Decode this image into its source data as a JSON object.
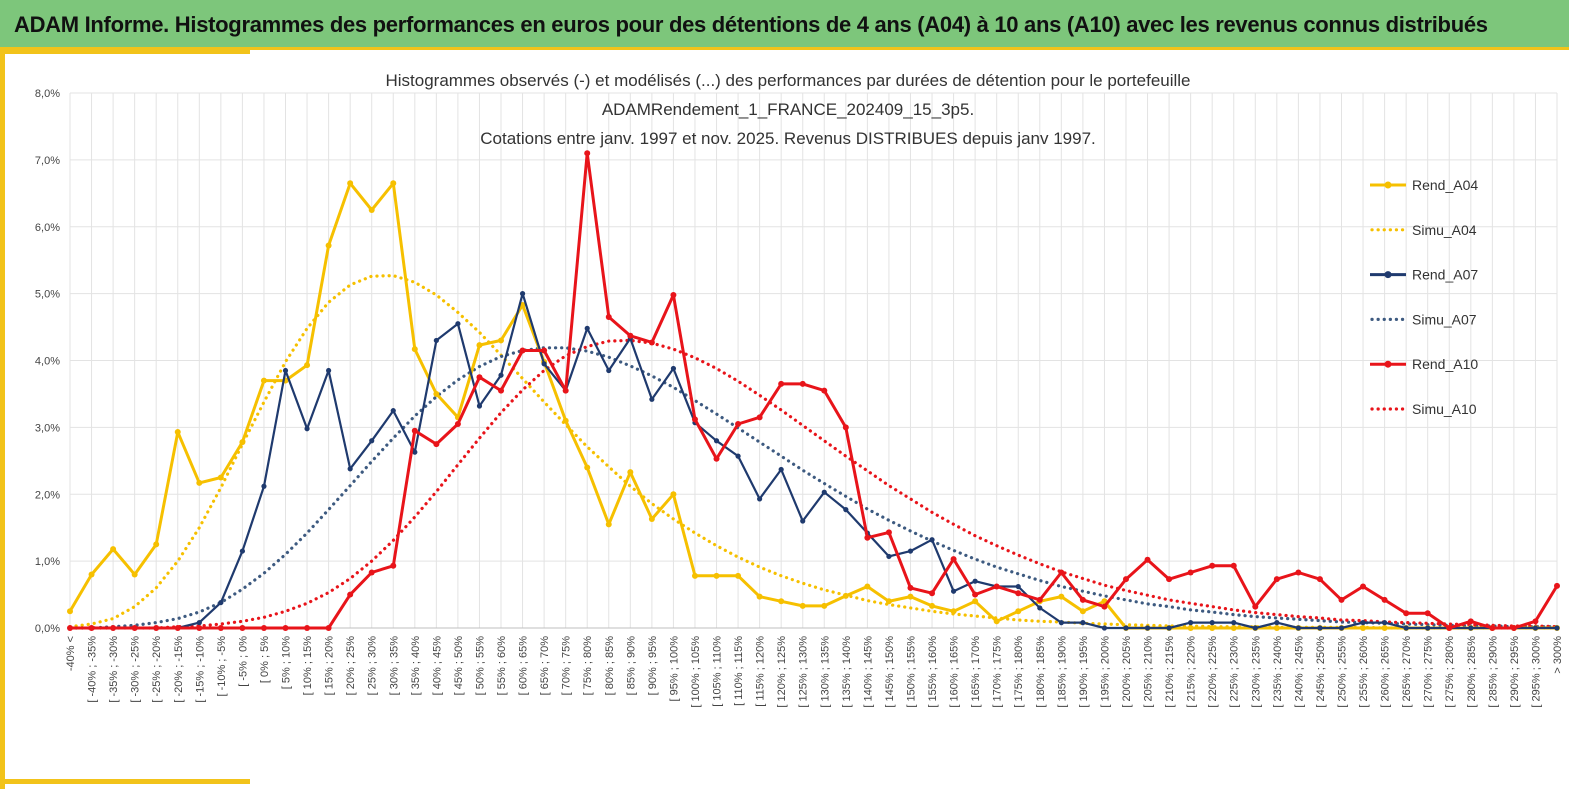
{
  "header": {
    "title": "ADAM Informe. Histogrammes des performances en euros pour des détentions de 4 ans (A04) à 10 ans (A10) avec les revenus connus distribués"
  },
  "chart_data": {
    "type": "line",
    "title_lines": [
      "Histogrammes observés (-) et modélisés (...) des performances par durées de détention pour le portefeuille",
      "ADAMRendement_1_FRANCE_202409_15_3p5.",
      "Cotations entre janv. 1997 et nov. 2025. Revenus DISTRIBUES depuis janv 1997."
    ],
    "xlabel": "",
    "ylabel": "",
    "ylim": [
      0,
      8
    ],
    "y_unit": "%",
    "yticks": [
      "0,0%",
      "1,0%",
      "2,0%",
      "3,0%",
      "4,0%",
      "5,0%",
      "6,0%",
      "7,0%",
      "8,0%"
    ],
    "grid": true,
    "legend_position": "right",
    "categories": [
      "-40% <",
      "[ -40% ; -35%",
      "[ -35% ; -30%",
      "[ -30% ; -25%",
      "[ -25% ; -20%",
      "[ -20% ; -15%",
      "[ -15% ; -10%",
      "[ -10% ; -5%",
      "[ -5% ; 0%",
      "[ 0% ; 5%",
      "[ 5% ; 10%",
      "[ 10% ; 15%",
      "[ 15% ; 20%",
      "[ 20% ; 25%",
      "[ 25% ; 30%",
      "[ 30% ; 35%",
      "[ 35% ; 40%",
      "[ 40% ; 45%",
      "[ 45% ; 50%",
      "[ 50% ; 55%",
      "[ 55% ; 60%",
      "[ 60% ; 65%",
      "[ 65% ; 70%",
      "[ 70% ; 75%",
      "[ 75% ; 80%",
      "[ 80% ; 85%",
      "[ 85% ; 90%",
      "[ 90% ; 95%",
      "[ 95% ; 100%",
      "[ 100% ; 105%",
      "[ 105% ; 110%",
      "[ 110% ; 115%",
      "[ 115% ; 120%",
      "[ 120% ; 125%",
      "[ 125% ; 130%",
      "[ 130% ; 135%",
      "[ 135% ; 140%",
      "[ 140% ; 145%",
      "[ 145% ; 150%",
      "[ 150% ; 155%",
      "[ 155% ; 160%",
      "[ 160% ; 165%",
      "[ 165% ; 170%",
      "[ 170% ; 175%",
      "[ 175% ; 180%",
      "[ 180% ; 185%",
      "[ 185% ; 190%",
      "[ 190% ; 195%",
      "[ 195% ; 200%",
      "[ 200% ; 205%",
      "[ 205% ; 210%",
      "[ 210% ; 215%",
      "[ 215% ; 220%",
      "[ 220% ; 225%",
      "[ 225% ; 230%",
      "[ 230% ; 235%",
      "[ 235% ; 240%",
      "[ 240% ; 245%",
      "[ 245% ; 250%",
      "[ 250% ; 255%",
      "[ 255% ; 260%",
      "[ 260% ; 265%",
      "[ 265% ; 270%",
      "[ 270% ; 275%",
      "[ 275% ; 280%",
      "[ 280% ; 285%",
      "[ 285% ; 290%",
      "[ 290% ; 295%",
      "[ 295% ; 300%",
      "> 300%"
    ],
    "series": [
      {
        "name": "Rend_A04",
        "color": "#f6c000",
        "style": "solid",
        "markers": true,
        "values": [
          0.25,
          0.8,
          1.18,
          0.8,
          1.25,
          2.93,
          2.17,
          2.25,
          2.78,
          3.7,
          3.7,
          3.93,
          5.72,
          6.65,
          6.25,
          6.65,
          4.17,
          3.5,
          3.15,
          4.23,
          4.3,
          4.83,
          3.98,
          3.1,
          2.4,
          1.55,
          2.33,
          1.63,
          2.0,
          0.78,
          0.78,
          0.78,
          0.47,
          0.4,
          0.33,
          0.33,
          0.48,
          0.62,
          0.4,
          0.47,
          0.33,
          0.25,
          0.4,
          0.1,
          0.25,
          0.4,
          0.47,
          0.25,
          0.4,
          0.0,
          0.0,
          0.0,
          0.0,
          0.0,
          0.0,
          0.0,
          0.0,
          0.0,
          0.0,
          0.0,
          0.0,
          0.0,
          0.0,
          0.0,
          0.0,
          0.0,
          0.0,
          0.0,
          0.0,
          0.0
        ]
      },
      {
        "name": "Simu_A04",
        "color": "#f6c000",
        "style": "dotted",
        "markers": false,
        "values": [
          0.02,
          0.06,
          0.14,
          0.32,
          0.6,
          1.0,
          1.5,
          2.1,
          2.75,
          3.38,
          3.98,
          4.48,
          4.87,
          5.13,
          5.26,
          5.27,
          5.17,
          4.98,
          4.72,
          4.42,
          4.08,
          3.73,
          3.38,
          3.04,
          2.71,
          2.41,
          2.12,
          1.86,
          1.63,
          1.42,
          1.23,
          1.06,
          0.91,
          0.78,
          0.67,
          0.57,
          0.49,
          0.41,
          0.35,
          0.3,
          0.25,
          0.21,
          0.18,
          0.15,
          0.12,
          0.1,
          0.09,
          0.07,
          0.06,
          0.05,
          0.04,
          0.03,
          0.03,
          0.02,
          0.02,
          0.02,
          0.01,
          0.01,
          0.01,
          0.01,
          0.01,
          0.0,
          0.0,
          0.0,
          0.0,
          0.0,
          0.0,
          0.0,
          0.0,
          0.0
        ]
      },
      {
        "name": "Rend_A07",
        "color": "#1f3a6e",
        "style": "solid",
        "markers": true,
        "values": [
          0.0,
          0.0,
          0.0,
          0.0,
          0.0,
          0.0,
          0.08,
          0.38,
          1.15,
          2.12,
          3.85,
          2.98,
          3.85,
          2.38,
          2.8,
          3.25,
          2.63,
          4.3,
          4.55,
          3.32,
          3.78,
          5.0,
          3.95,
          3.55,
          4.48,
          3.85,
          4.33,
          3.42,
          3.88,
          3.07,
          2.8,
          2.57,
          1.93,
          2.37,
          1.6,
          2.03,
          1.77,
          1.42,
          1.07,
          1.15,
          1.32,
          0.55,
          0.7,
          0.62,
          0.62,
          0.3,
          0.08,
          0.08,
          0.0,
          0.0,
          0.0,
          0.0,
          0.08,
          0.08,
          0.08,
          0.0,
          0.08,
          0.0,
          0.0,
          0.0,
          0.08,
          0.08,
          0.0,
          0.0,
          0.0,
          0.0,
          0.0,
          0.0,
          0.0,
          0.0
        ]
      },
      {
        "name": "Simu_A07",
        "color": "#3d5a80",
        "style": "dotted",
        "markers": false,
        "values": [
          0.0,
          0.0,
          0.02,
          0.04,
          0.08,
          0.14,
          0.24,
          0.38,
          0.58,
          0.82,
          1.1,
          1.42,
          1.77,
          2.13,
          2.49,
          2.84,
          3.17,
          3.46,
          3.71,
          3.91,
          4.06,
          4.15,
          4.19,
          4.19,
          4.14,
          4.05,
          3.92,
          3.77,
          3.6,
          3.4,
          3.2,
          2.99,
          2.78,
          2.57,
          2.36,
          2.16,
          1.97,
          1.78,
          1.61,
          1.45,
          1.3,
          1.16,
          1.03,
          0.91,
          0.81,
          0.71,
          0.62,
          0.55,
          0.48,
          0.42,
          0.36,
          0.32,
          0.27,
          0.24,
          0.2,
          0.17,
          0.15,
          0.13,
          0.11,
          0.09,
          0.08,
          0.07,
          0.06,
          0.05,
          0.04,
          0.03,
          0.03,
          0.02,
          0.02,
          0.02
        ]
      },
      {
        "name": "Rend_A10",
        "color": "#e8141a",
        "style": "solid",
        "markers": true,
        "values": [
          0.0,
          0.0,
          0.0,
          0.0,
          0.0,
          0.0,
          0.0,
          0.0,
          0.0,
          0.0,
          0.0,
          0.0,
          0.0,
          0.5,
          0.83,
          0.93,
          2.95,
          2.75,
          3.05,
          3.75,
          3.55,
          4.15,
          4.15,
          3.55,
          7.1,
          4.65,
          4.37,
          4.27,
          4.98,
          3.12,
          2.53,
          3.05,
          3.15,
          3.65,
          3.65,
          3.55,
          3.0,
          1.35,
          1.43,
          0.6,
          0.52,
          1.03,
          0.5,
          0.62,
          0.52,
          0.42,
          0.83,
          0.42,
          0.32,
          0.73,
          1.02,
          0.73,
          0.83,
          0.93,
          0.93,
          0.32,
          0.73,
          0.83,
          0.73,
          0.42,
          0.62,
          0.42,
          0.22,
          0.22,
          0.0,
          0.1,
          0.0,
          0.0,
          0.1,
          0.63
        ]
      },
      {
        "name": "Simu_A10",
        "color": "#e8141a",
        "style": "dotted",
        "markers": false,
        "values": [
          0.0,
          0.0,
          0.0,
          0.0,
          0.0,
          0.02,
          0.03,
          0.06,
          0.1,
          0.16,
          0.25,
          0.37,
          0.53,
          0.74,
          1.0,
          1.31,
          1.66,
          2.04,
          2.44,
          2.84,
          3.22,
          3.56,
          3.85,
          4.07,
          4.21,
          4.29,
          4.3,
          4.26,
          4.17,
          4.04,
          3.88,
          3.69,
          3.48,
          3.26,
          3.03,
          2.8,
          2.57,
          2.35,
          2.13,
          1.93,
          1.73,
          1.55,
          1.38,
          1.23,
          1.09,
          0.96,
          0.84,
          0.74,
          0.64,
          0.56,
          0.49,
          0.42,
          0.37,
          0.32,
          0.27,
          0.23,
          0.2,
          0.17,
          0.15,
          0.12,
          0.11,
          0.09,
          0.08,
          0.07,
          0.06,
          0.05,
          0.04,
          0.03,
          0.03,
          0.02
        ]
      }
    ]
  }
}
